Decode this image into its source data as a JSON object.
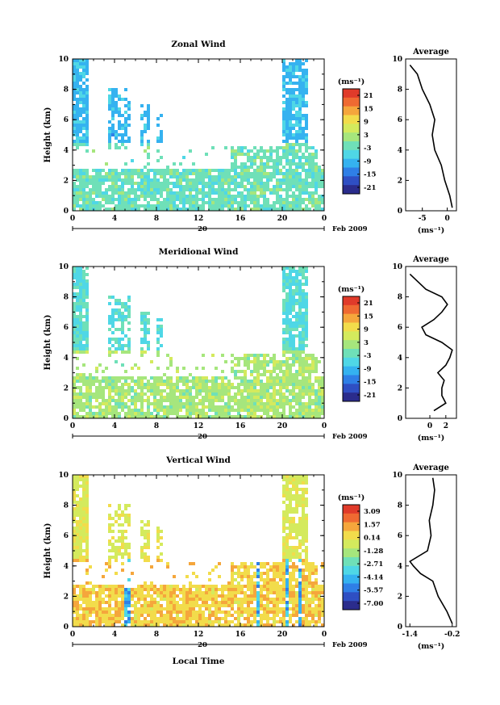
{
  "colorbar_unit": "(ms⁻¹)",
  "date_label": "Feb 2009",
  "xlabel_bottom": "Local Time",
  "colormap": [
    "#2b2c8c",
    "#2f4fc3",
    "#2f7fe6",
    "#35b2f0",
    "#4fd7e6",
    "#6fe0b8",
    "#a6e67d",
    "#d4ea5d",
    "#f2dc4b",
    "#f5a63c",
    "#ef6a32",
    "#e03b2a"
  ],
  "panels": [
    {
      "title": "Zonal Wind",
      "ylabel": "Height (km)",
      "x_ticks": [
        "0",
        "4",
        "8",
        "12",
        "16",
        "20",
        "0"
      ],
      "y_ticks": [
        "0",
        "2",
        "4",
        "6",
        "8",
        "10"
      ],
      "date_tick": "20",
      "colorbar_ticks": [
        "21",
        "15",
        "9",
        "3",
        "-3",
        "-9",
        "-15",
        "-21"
      ],
      "avg_title": "Average",
      "avg_xlabel": "(ms⁻¹)",
      "avg_x_ticks": [
        "-5",
        "0"
      ],
      "avg_y_ticks": [
        "0",
        "2",
        "4",
        "6",
        "8",
        "10"
      ]
    },
    {
      "title": "Meridional Wind",
      "ylabel": "Height (km)",
      "x_ticks": [
        "0",
        "4",
        "8",
        "12",
        "16",
        "20",
        "0"
      ],
      "y_ticks": [
        "0",
        "2",
        "4",
        "6",
        "8",
        "10"
      ],
      "date_tick": "20",
      "colorbar_ticks": [
        "21",
        "15",
        "9",
        "3",
        "-3",
        "-9",
        "-15",
        "-21"
      ],
      "avg_title": "Average",
      "avg_xlabel": "(ms⁻¹)",
      "avg_x_ticks": [
        "0",
        "2"
      ],
      "avg_y_ticks": [
        "0",
        "2",
        "4",
        "6",
        "8",
        "10"
      ]
    },
    {
      "title": "Vertical Wind",
      "ylabel": "Height (km)",
      "x_ticks": [
        "0",
        "4",
        "8",
        "12",
        "16",
        "20",
        "0"
      ],
      "y_ticks": [
        "0",
        "2",
        "4",
        "6",
        "8",
        "10"
      ],
      "date_tick": "20",
      "colorbar_ticks": [
        "3.09",
        "1.57",
        "0.14",
        "-1.28",
        "-2.71",
        "-4.14",
        "-5.57",
        "-7.00"
      ],
      "avg_title": "Average",
      "avg_xlabel": "(ms⁻¹)",
      "avg_x_ticks": [
        "-1.4",
        "-0.2"
      ],
      "avg_y_ticks": [
        "0",
        "2",
        "4",
        "6",
        "8",
        "10"
      ]
    }
  ],
  "chart_data": [
    {
      "type": "heatmap",
      "title": "Zonal Wind",
      "xlabel": "",
      "ylabel": "Height (km)",
      "x_range_hours": [
        0,
        24
      ],
      "ylim": [
        0,
        10
      ],
      "color_range": [
        -21,
        21
      ],
      "typical_values": {
        "lower_0_3km": -2,
        "upper_5_10km": -8
      },
      "average_profile": {
        "title": "Average",
        "xlabel": "(ms⁻¹)",
        "height_km": [
          0.2,
          1,
          2,
          3,
          4,
          5,
          6,
          7,
          8,
          9,
          9.6
        ],
        "value": [
          1,
          0.5,
          -0.5,
          -1.2,
          -2.5,
          -3,
          -2.5,
          -3.5,
          -5,
          -6,
          -7.5
        ]
      }
    },
    {
      "type": "heatmap",
      "title": "Meridional Wind",
      "xlabel": "",
      "ylabel": "Height (km)",
      "x_range_hours": [
        0,
        24
      ],
      "ylim": [
        0,
        10
      ],
      "color_range": [
        -21,
        21
      ],
      "typical_values": {
        "lower_0_3km": 2,
        "upper_5_10km": -4
      },
      "average_profile": {
        "title": "Average",
        "xlabel": "(ms⁻¹)",
        "height_km": [
          0.5,
          1,
          1.5,
          2,
          2.5,
          3,
          3.5,
          4,
          4.5,
          5,
          5.5,
          6,
          6.5,
          7,
          7.5,
          8,
          8.5,
          9,
          9.5
        ],
        "value": [
          0.5,
          2,
          1.5,
          1.5,
          1.8,
          1,
          2,
          2.5,
          2.8,
          1.5,
          -0.5,
          -1,
          0.5,
          1.5,
          2.2,
          1.5,
          -0.5,
          -1.5,
          -2.5
        ]
      }
    },
    {
      "type": "heatmap",
      "title": "Vertical Wind",
      "xlabel": "Local Time",
      "ylabel": "Height (km)",
      "x_range_hours": [
        0,
        24
      ],
      "ylim": [
        0,
        10
      ],
      "color_range": [
        -7.0,
        3.09
      ],
      "typical_values": {
        "lower_0_3km": 0.3,
        "upper_5_10km": -0.5,
        "downdraft_streaks": -5
      },
      "average_profile": {
        "title": "Average",
        "xlabel": "(ms⁻¹)",
        "height_km": [
          0.2,
          1,
          2,
          3,
          3.5,
          4,
          4.3,
          5,
          6,
          7,
          8,
          9,
          9.8
        ],
        "value": [
          -0.2,
          -0.35,
          -0.6,
          -0.75,
          -1.1,
          -1.3,
          -1.4,
          -0.9,
          -0.8,
          -0.85,
          -0.75,
          -0.7,
          -0.75
        ]
      }
    }
  ]
}
